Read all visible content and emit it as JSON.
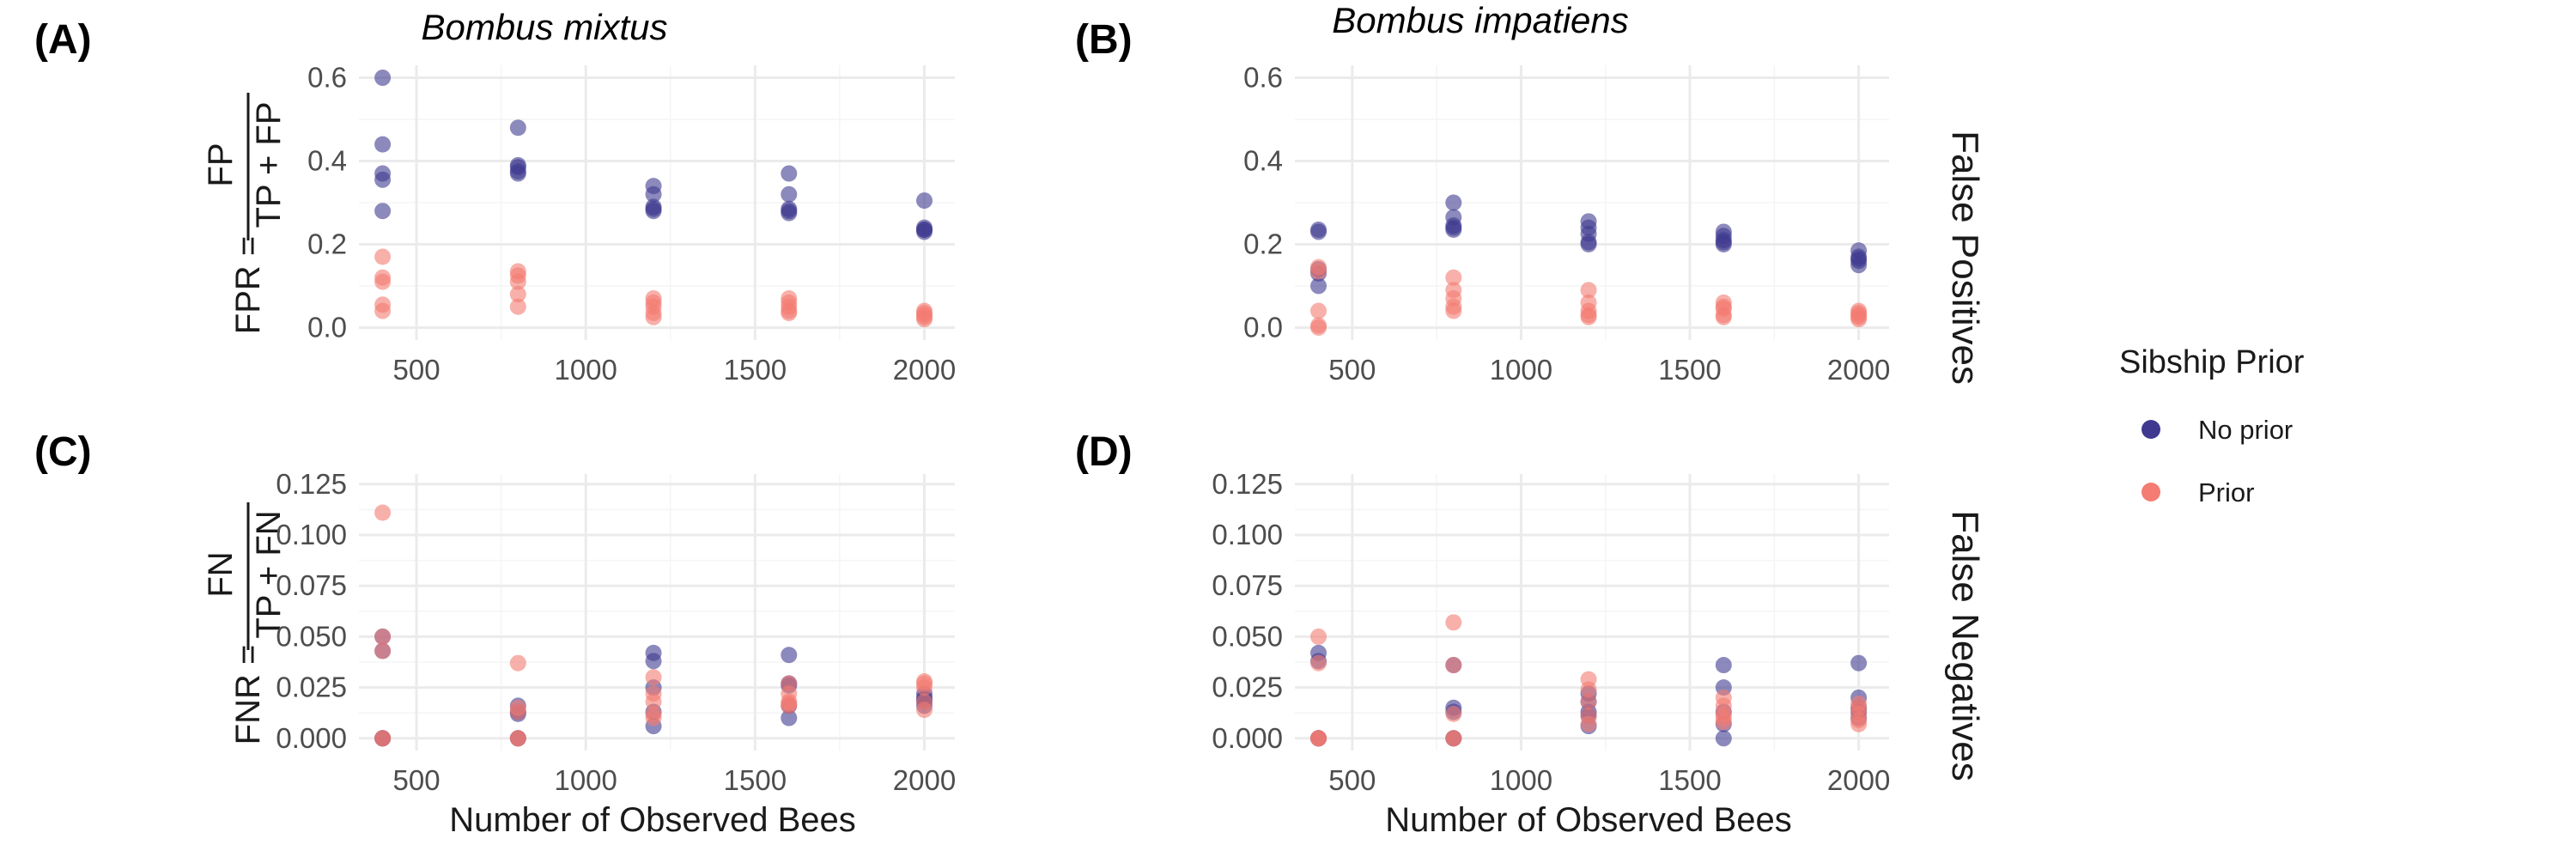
{
  "chart_data": {
    "type": "scatter",
    "panel_labels": [
      "(A)",
      "(B)",
      "(C)",
      "(D)"
    ],
    "columns": [
      "Bombus mixtus",
      "Bombus impatiens"
    ],
    "rows": [
      "False Positives",
      "False Negatives"
    ],
    "y_titles": {
      "fpr_lhs": "FPR =",
      "fpr_num": "FP",
      "fpr_den": "TP + FP",
      "fnr_lhs": "FNR =",
      "fnr_num": "FN",
      "fnr_den": "TP + FN"
    },
    "xlabel": "Number of Observed Bees",
    "xlim": [
      330,
      2090
    ],
    "xticks": [
      500,
      1000,
      1500,
      2000
    ],
    "xtick_labels": [
      "500",
      "1000",
      "1500",
      "2000"
    ],
    "ylim_fpr": [
      -0.03,
      0.63
    ],
    "yticks_fpr": [
      0.0,
      0.2,
      0.4,
      0.6
    ],
    "ytick_labels_fpr": [
      "0.0",
      "0.2",
      "0.4",
      "0.6"
    ],
    "ylim_fnr": [
      -0.006,
      0.13
    ],
    "yticks_fnr": [
      0.0,
      0.025,
      0.05,
      0.075,
      0.1,
      0.125
    ],
    "ytick_labels_fnr": [
      "0.000",
      "0.025",
      "0.050",
      "0.075",
      "0.100",
      "0.125"
    ],
    "legend": {
      "title": "Sibship Prior",
      "position": "right",
      "items": [
        {
          "label": "No prior",
          "color": "#3f3a8f"
        },
        {
          "label": "Prior",
          "color": "#f47c72"
        }
      ]
    },
    "point_alpha": 0.6,
    "grid": true,
    "panels": [
      {
        "species": "Bombus mixtus",
        "metric": "False Positives",
        "series": [
          {
            "name": "No prior",
            "x": [
              400,
              400,
              400,
              400,
              400,
              800,
              800,
              800,
              800,
              800,
              1200,
              1200,
              1200,
              1200,
              1200,
              1600,
              1600,
              1600,
              1600,
              1600,
              2000,
              2000,
              2000,
              2000,
              2000
            ],
            "y": [
              0.6,
              0.44,
              0.37,
              0.355,
              0.28,
              0.48,
              0.39,
              0.385,
              0.375,
              0.37,
              0.34,
              0.32,
              0.29,
              0.285,
              0.28,
              0.37,
              0.32,
              0.285,
              0.28,
              0.275,
              0.305,
              0.24,
              0.235,
              0.235,
              0.23
            ]
          },
          {
            "name": "Prior",
            "x": [
              400,
              400,
              400,
              400,
              400,
              800,
              800,
              800,
              800,
              800,
              1200,
              1200,
              1200,
              1200,
              1200,
              1600,
              1600,
              1600,
              1600,
              1600,
              2000,
              2000,
              2000,
              2000,
              2000
            ],
            "y": [
              0.17,
              0.12,
              0.11,
              0.055,
              0.04,
              0.135,
              0.125,
              0.11,
              0.08,
              0.05,
              0.07,
              0.06,
              0.05,
              0.035,
              0.025,
              0.07,
              0.06,
              0.05,
              0.04,
              0.035,
              0.04,
              0.035,
              0.03,
              0.025,
              0.02
            ]
          }
        ]
      },
      {
        "species": "Bombus impatiens",
        "metric": "False Positives",
        "series": [
          {
            "name": "No prior",
            "x": [
              400,
              400,
              400,
              400,
              400,
              800,
              800,
              800,
              800,
              800,
              1200,
              1200,
              1200,
              1200,
              1200,
              1600,
              1600,
              1600,
              1600,
              1600,
              2000,
              2000,
              2000,
              2000,
              2000
            ],
            "y": [
              0.235,
              0.23,
              0.14,
              0.13,
              0.1,
              0.3,
              0.265,
              0.245,
              0.24,
              0.235,
              0.255,
              0.24,
              0.225,
              0.205,
              0.2,
              0.23,
              0.22,
              0.21,
              0.205,
              0.2,
              0.185,
              0.17,
              0.165,
              0.16,
              0.15
            ]
          },
          {
            "name": "Prior",
            "x": [
              400,
              400,
              400,
              400,
              400,
              800,
              800,
              800,
              800,
              800,
              1200,
              1200,
              1200,
              1200,
              1200,
              1600,
              1600,
              1600,
              1600,
              1600,
              2000,
              2000,
              2000,
              2000,
              2000
            ],
            "y": [
              0.145,
              0.135,
              0.04,
              0.005,
              0.0,
              0.12,
              0.09,
              0.07,
              0.05,
              0.04,
              0.09,
              0.06,
              0.04,
              0.03,
              0.025,
              0.06,
              0.05,
              0.045,
              0.03,
              0.025,
              0.04,
              0.035,
              0.03,
              0.025,
              0.02
            ]
          }
        ]
      },
      {
        "species": "Bombus mixtus",
        "metric": "False Negatives",
        "series": [
          {
            "name": "No prior",
            "x": [
              400,
              400,
              400,
              400,
              400,
              800,
              800,
              800,
              800,
              800,
              1200,
              1200,
              1200,
              1200,
              1200,
              1600,
              1600,
              1600,
              1600,
              1600,
              2000,
              2000,
              2000,
              2000,
              2000
            ],
            "y": [
              0.05,
              0.043,
              0.0,
              0.0,
              0.0,
              0.016,
              0.013,
              0.012,
              0.0,
              0.0,
              0.042,
              0.038,
              0.025,
              0.013,
              0.006,
              0.041,
              0.027,
              0.026,
              0.016,
              0.01,
              0.022,
              0.02,
              0.019,
              0.018,
              0.016
            ]
          },
          {
            "name": "Prior",
            "x": [
              400,
              400,
              400,
              400,
              400,
              800,
              800,
              800,
              800,
              800,
              1200,
              1200,
              1200,
              1200,
              1200,
              1600,
              1600,
              1600,
              1600,
              1600,
              2000,
              2000,
              2000,
              2000,
              2000
            ],
            "y": [
              0.111,
              0.05,
              0.043,
              0.0,
              0.0,
              0.037,
              0.015,
              0.013,
              0.0,
              0.0,
              0.03,
              0.022,
              0.018,
              0.012,
              0.01,
              0.027,
              0.022,
              0.018,
              0.017,
              0.016,
              0.028,
              0.027,
              0.025,
              0.018,
              0.014
            ]
          }
        ]
      },
      {
        "species": "Bombus impatiens",
        "metric": "False Negatives",
        "series": [
          {
            "name": "No prior",
            "x": [
              400,
              400,
              400,
              400,
              400,
              800,
              800,
              800,
              800,
              800,
              1200,
              1200,
              1200,
              1200,
              1200,
              1600,
              1600,
              1600,
              1600,
              1600,
              2000,
              2000,
              2000,
              2000,
              2000
            ],
            "y": [
              0.042,
              0.038,
              0.0,
              0.0,
              0.0,
              0.036,
              0.015,
              0.013,
              0.0,
              0.0,
              0.022,
              0.018,
              0.013,
              0.011,
              0.006,
              0.036,
              0.025,
              0.013,
              0.007,
              0.0,
              0.037,
              0.02,
              0.015,
              0.013,
              0.01
            ]
          },
          {
            "name": "Prior",
            "x": [
              400,
              400,
              400,
              400,
              400,
              800,
              800,
              800,
              800,
              800,
              1200,
              1200,
              1200,
              1200,
              1200,
              1600,
              1600,
              1600,
              1600,
              1600,
              2000,
              2000,
              2000,
              2000,
              2000
            ],
            "y": [
              0.05,
              0.037,
              0.0,
              0.0,
              0.0,
              0.057,
              0.036,
              0.012,
              0.0,
              0.0,
              0.029,
              0.024,
              0.018,
              0.011,
              0.007,
              0.02,
              0.016,
              0.012,
              0.01,
              0.008,
              0.017,
              0.015,
              0.012,
              0.009,
              0.007
            ]
          }
        ]
      }
    ]
  }
}
